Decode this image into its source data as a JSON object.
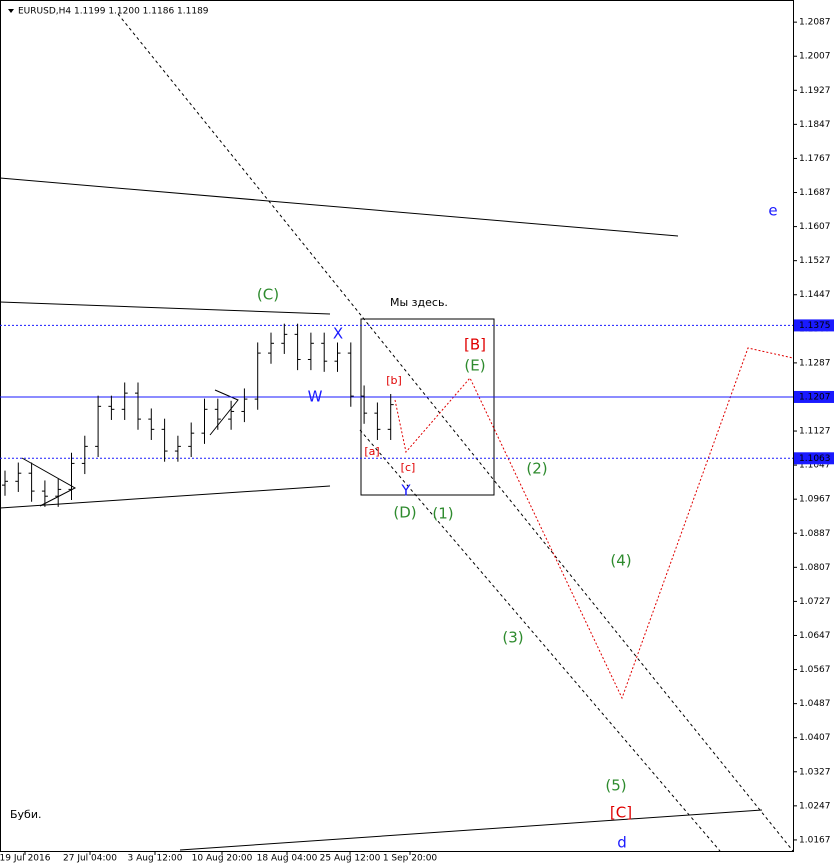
{
  "chart_data": {
    "type": "ohlc",
    "title": "EURUSD,H4  1.1199 1.1200 1.1186 1.1189",
    "open": [
      1.1,
      1.1009,
      1.1028,
      1.0986,
      1.0974,
      1.099,
      1.1051,
      1.1091,
      1.1185,
      1.1178,
      1.1216,
      1.1155,
      1.1131,
      1.108,
      1.1091,
      1.1122,
      1.1178,
      1.1155,
      1.1173,
      1.1202,
      1.131,
      1.1333,
      1.1354,
      1.1295,
      1.1333,
      1.1291,
      1.131,
      1.1209,
      1.1169,
      1.1131
    ],
    "high": [
      1.1034,
      1.1053,
      1.1053,
      1.1011,
      1.1015,
      1.1076,
      1.1116,
      1.121,
      1.121,
      1.1241,
      1.1241,
      1.118,
      1.1156,
      1.1116,
      1.1147,
      1.1203,
      1.1203,
      1.1198,
      1.1227,
      1.1335,
      1.1358,
      1.1379,
      1.1379,
      1.1358,
      1.1358,
      1.1335,
      1.1335,
      1.1234,
      1.1194,
      1.1214
    ],
    "low": [
      1.0975,
      1.0984,
      1.0961,
      1.0949,
      1.0949,
      1.0965,
      1.1026,
      1.1066,
      1.1153,
      1.1153,
      1.113,
      1.1106,
      1.1055,
      1.1055,
      1.1066,
      1.1097,
      1.113,
      1.113,
      1.1148,
      1.1177,
      1.1285,
      1.1308,
      1.127,
      1.127,
      1.1266,
      1.1266,
      1.1184,
      1.1144,
      1.1106,
      1.1106
    ],
    "close": [
      1.1009,
      1.1028,
      1.0986,
      1.0974,
      1.099,
      1.1051,
      1.1091,
      1.1185,
      1.1178,
      1.1216,
      1.1155,
      1.1131,
      1.108,
      1.1091,
      1.1122,
      1.1178,
      1.1155,
      1.1173,
      1.1202,
      1.131,
      1.1333,
      1.1354,
      1.1295,
      1.1333,
      1.1291,
      1.131,
      1.1209,
      1.1169,
      1.1131,
      1.1189
    ],
    "x_labels": [
      "19 Jul 2016",
      "27 Jul 04:00",
      "3 Aug 12:00",
      "10 Aug 20:00",
      "18 Aug 04:00",
      "25 Aug 12:00",
      "1 Sep 20:00"
    ],
    "ylim": [
      1.0141,
      1.2139
    ],
    "yticks": [
      1.2087,
      1.2007,
      1.1927,
      1.1847,
      1.1767,
      1.1687,
      1.1607,
      1.1527,
      1.1447,
      1.1367,
      1.1287,
      1.1207,
      1.1127,
      1.1047,
      1.0967,
      1.0887,
      1.0807,
      1.0727,
      1.0647,
      1.0567,
      1.0487,
      1.0407,
      1.0327,
      1.0247,
      1.0167
    ],
    "levels": [
      {
        "value": 1.1375,
        "label": "1.1375",
        "style": "dotted"
      },
      {
        "value": 1.1207,
        "label": "1.1207",
        "style": "solid"
      },
      {
        "value": 1.1063,
        "label": "1.1063",
        "style": "dotted"
      }
    ],
    "color": "#000000",
    "level_color": "#1a1aff",
    "annotations": [
      "(C)",
      "X",
      "W",
      "Мы здесь.",
      "[B]",
      "(E)",
      "[b]",
      "[a]",
      "[c]",
      "Y",
      "(D)",
      "(1)",
      "(2)",
      "(3)",
      "(4)",
      "(5)",
      "[C]",
      "e",
      "d",
      "Буби."
    ]
  }
}
